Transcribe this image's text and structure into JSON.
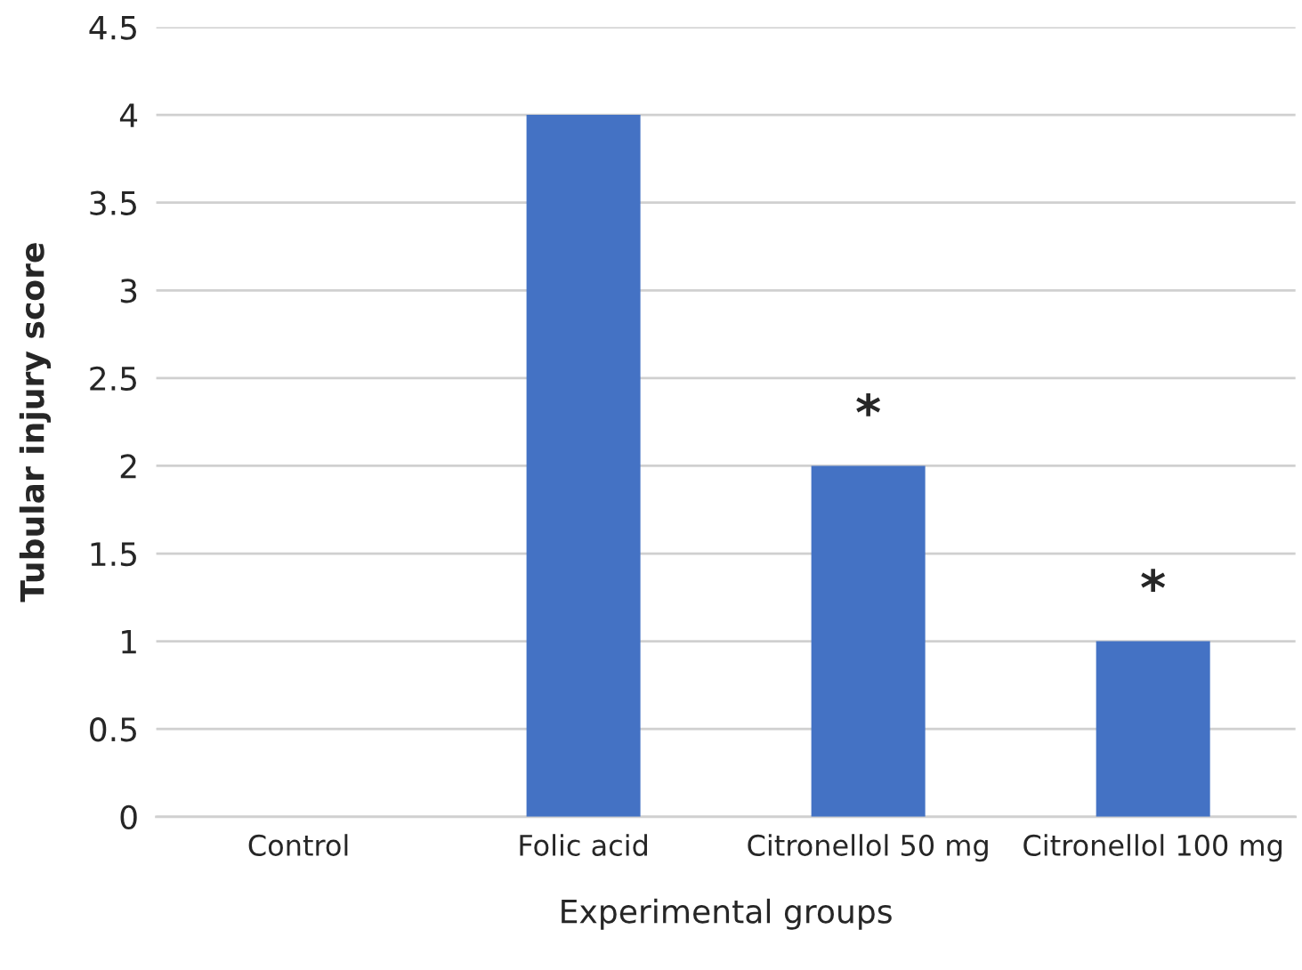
{
  "chart_data": {
    "type": "bar",
    "xlabel": "Experimental groups",
    "ylabel": "Tubular injury score",
    "categories": [
      "Control",
      "Folic acid",
      "Citronellol 50 mg",
      "Citronellol 100 mg"
    ],
    "values": [
      0,
      4,
      2,
      1
    ],
    "color": "#4472c4",
    "ylim": [
      0,
      4.5
    ],
    "yticks": [
      0,
      0.5,
      1,
      1.5,
      2,
      2.5,
      3,
      3.5,
      4,
      4.5
    ],
    "grid": "y",
    "annotations": [
      {
        "text": "*",
        "x": "Citronellol 50 mg",
        "y": 2
      },
      {
        "text": "*",
        "x": "Citronellol 100 mg",
        "y": 1
      }
    ]
  }
}
